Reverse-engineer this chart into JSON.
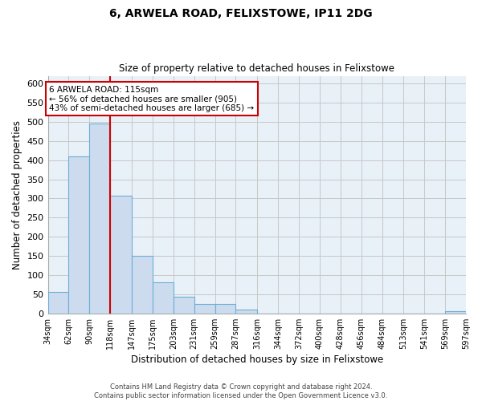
{
  "title": "6, ARWELA ROAD, FELIXSTOWE, IP11 2DG",
  "subtitle": "Size of property relative to detached houses in Felixstowe",
  "xlabel": "Distribution of detached houses by size in Felixstowe",
  "ylabel": "Number of detached properties",
  "bin_edges": [
    34,
    62,
    90,
    118,
    147,
    175,
    203,
    231,
    259,
    287,
    316,
    344,
    372,
    400,
    428,
    456,
    484,
    513,
    541,
    569,
    597
  ],
  "bar_heights": [
    57,
    410,
    495,
    307,
    150,
    82,
    44,
    25,
    25,
    10,
    0,
    0,
    0,
    0,
    0,
    0,
    0,
    0,
    0,
    5
  ],
  "tick_labels": [
    "34sqm",
    "62sqm",
    "90sqm",
    "118sqm",
    "147sqm",
    "175sqm",
    "203sqm",
    "231sqm",
    "259sqm",
    "287sqm",
    "316sqm",
    "344sqm",
    "372sqm",
    "400sqm",
    "428sqm",
    "456sqm",
    "484sqm",
    "513sqm",
    "541sqm",
    "569sqm",
    "597sqm"
  ],
  "bar_color": "#ccdcee",
  "bar_edge_color": "#6baed6",
  "reference_line_x": 118,
  "reference_line_color": "#cc0000",
  "ylim": [
    0,
    620
  ],
  "yticks": [
    0,
    50,
    100,
    150,
    200,
    250,
    300,
    350,
    400,
    450,
    500,
    550,
    600
  ],
  "annotation_title": "6 ARWELA ROAD: 115sqm",
  "annotation_line1": "← 56% of detached houses are smaller (905)",
  "annotation_line2": "43% of semi-detached houses are larger (685) →",
  "annotation_box_color": "#ffffff",
  "annotation_box_edge": "#cc0000",
  "footer_line1": "Contains HM Land Registry data © Crown copyright and database right 2024.",
  "footer_line2": "Contains public sector information licensed under the Open Government Licence v3.0.",
  "plot_bg_color": "#e8f0f8",
  "fig_bg_color": "#ffffff",
  "grid_color": "#c8c8c8"
}
